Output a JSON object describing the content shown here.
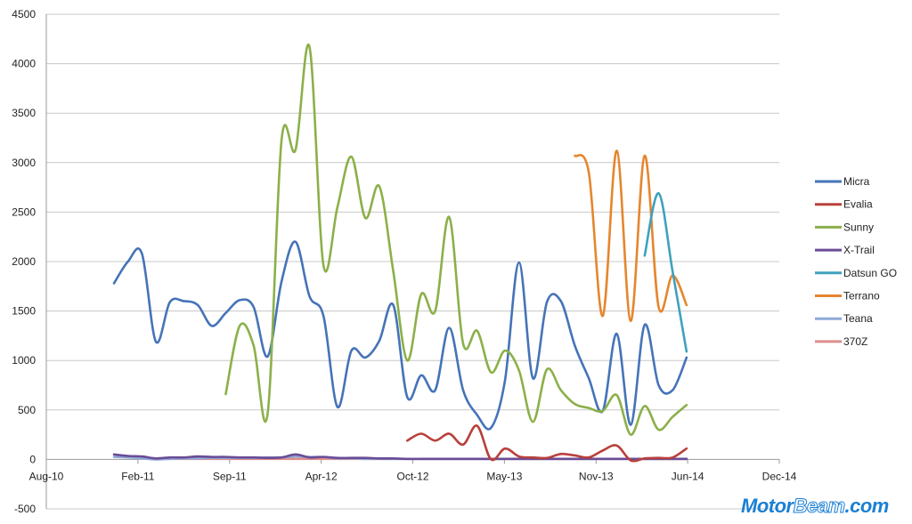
{
  "chart_data": {
    "type": "line",
    "title": "",
    "xlabel": "",
    "ylabel": "",
    "ylim": [
      -500,
      4500
    ],
    "y_ticks": [
      "-500",
      "0",
      "500",
      "1000",
      "1500",
      "2000",
      "2500",
      "3000",
      "3500",
      "4000",
      "4500"
    ],
    "x_ticks": [
      "Aug-10",
      "Feb-11",
      "Sep-11",
      "Apr-12",
      "Oct-12",
      "May-13",
      "Nov-13",
      "Jun-14",
      "Dec-14"
    ],
    "x_start_month": "Jan-11",
    "x_end_month": "Jun-14",
    "grid": true,
    "legend_position": "right",
    "smooth": true,
    "series": [
      {
        "name": "Micra",
        "color": "#4573b8",
        "start": 0,
        "values": [
          1780,
          2000,
          2080,
          1190,
          1590,
          1600,
          1560,
          1350,
          1480,
          1610,
          1540,
          1040,
          1800,
          2200,
          1650,
          1450,
          530,
          1100,
          1030,
          1200,
          1560,
          630,
          850,
          700,
          1330,
          700,
          450,
          320,
          800,
          1990,
          820,
          1590,
          1600,
          1150,
          820,
          490,
          1270,
          350,
          1360,
          750,
          700,
          1030
        ]
      },
      {
        "name": "Evalia",
        "color": "#b9403c",
        "start": 21,
        "values": [
          190,
          260,
          190,
          260,
          150,
          340,
          0,
          110,
          30,
          20,
          15,
          55,
          40,
          20,
          90,
          140,
          -10,
          10,
          15,
          20,
          110
        ]
      },
      {
        "name": "Sunny",
        "color": "#8cb04a",
        "start": 8,
        "values": [
          660,
          1350,
          1150,
          460,
          3230,
          3130,
          4170,
          1960,
          2550,
          3060,
          2440,
          2760,
          1900,
          1000,
          1670,
          1500,
          2450,
          1170,
          1300,
          880,
          1100,
          900,
          380,
          910,
          700,
          560,
          520,
          490,
          650,
          250,
          540,
          300,
          430,
          550
        ]
      },
      {
        "name": "X-Trail",
        "color": "#6a4c96",
        "start": 0,
        "values": [
          50,
          35,
          30,
          10,
          20,
          20,
          30,
          25,
          25,
          20,
          20,
          15,
          20,
          50,
          20,
          25,
          15,
          15,
          15,
          10,
          10,
          5,
          5,
          5,
          5,
          5,
          5,
          5,
          5,
          5,
          5,
          5,
          5,
          5,
          5,
          5,
          5,
          5,
          5,
          5,
          5,
          5
        ]
      },
      {
        "name": "Datsun GO",
        "color": "#3fa1be",
        "start": 38,
        "values": [
          2060,
          2690,
          1900,
          1090
        ]
      },
      {
        "name": "Terrano",
        "color": "#e5862e",
        "start": 33,
        "values": [
          3070,
          2900,
          1450,
          3120,
          1400,
          3070,
          1540,
          1860,
          1560
        ]
      },
      {
        "name": "Teana",
        "color": "#8fa9d8",
        "start": 0,
        "values": [
          25,
          20,
          10,
          0,
          5,
          10,
          10,
          15,
          15,
          15,
          15,
          20,
          20,
          30,
          25,
          25,
          10,
          10,
          5,
          5,
          5,
          5,
          5,
          5,
          5,
          5,
          5,
          5,
          5,
          5,
          5,
          5,
          5,
          5,
          5,
          5,
          5,
          5,
          5,
          5,
          5,
          5
        ]
      },
      {
        "name": "370Z",
        "color": "#dd8f8c",
        "start": 4,
        "values": [
          5,
          5,
          5,
          5,
          5,
          5,
          5,
          5,
          5,
          5,
          5,
          5,
          5,
          5,
          5,
          5,
          5,
          5,
          5,
          5,
          5,
          5,
          5,
          5,
          5,
          5,
          5,
          5,
          5,
          5,
          5,
          5,
          5,
          5,
          5,
          5,
          5,
          5
        ]
      }
    ]
  },
  "watermark": "MotorBeam.com"
}
